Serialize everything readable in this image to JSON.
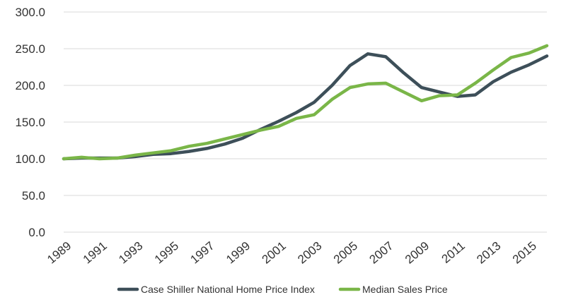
{
  "chart_data": {
    "type": "line",
    "x": [
      1989,
      1990,
      1991,
      1992,
      1993,
      1994,
      1995,
      1996,
      1997,
      1998,
      1999,
      2000,
      2001,
      2002,
      2003,
      2004,
      2005,
      2006,
      2007,
      2008,
      2009,
      2010,
      2011,
      2012,
      2013,
      2014,
      2015,
      2016
    ],
    "x_tick_labels": [
      "1989",
      "1991",
      "1993",
      "1995",
      "1997",
      "1999",
      "2001",
      "2003",
      "2005",
      "2007",
      "2009",
      "2011",
      "2013",
      "2015"
    ],
    "y_tick_labels": [
      "0.0",
      "50.0",
      "100.0",
      "150.0",
      "200.0",
      "250.0",
      "300.0"
    ],
    "ylim": [
      0,
      300
    ],
    "grid": "horizontal",
    "legend_position": "bottom",
    "series": [
      {
        "name": "Case Shiller National Home Price Index",
        "color": "#3d4f59",
        "values": [
          100,
          101,
          101,
          101,
          103,
          106,
          107,
          110,
          114,
          120,
          128,
          140,
          151,
          163,
          177,
          200,
          227,
          243,
          239,
          217,
          197,
          191,
          185,
          187,
          205,
          218,
          228,
          240
        ]
      },
      {
        "name": "Median Sales Price",
        "color": "#7ab648",
        "values": [
          100,
          102,
          100,
          101,
          105,
          108,
          111,
          117,
          121,
          127,
          133,
          139,
          144,
          155,
          160,
          181,
          197,
          202,
          203,
          191,
          179,
          186,
          187,
          203,
          221,
          238,
          244,
          254
        ]
      }
    ]
  }
}
